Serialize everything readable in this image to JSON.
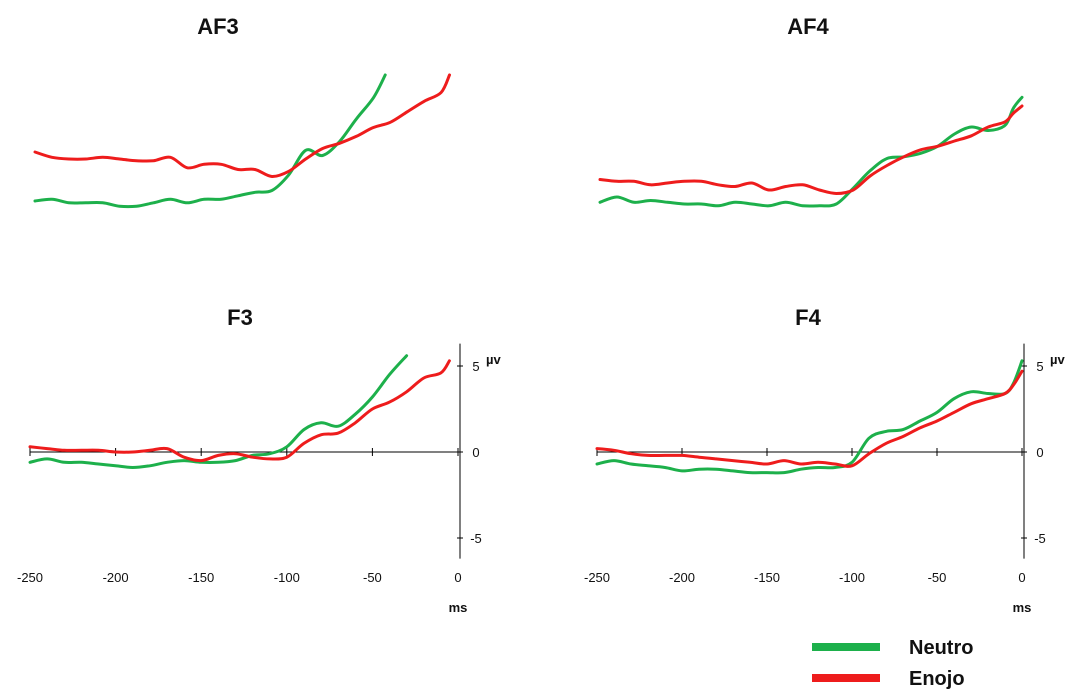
{
  "colors": {
    "neutro": "#1db04b",
    "enojo": "#ee1c1c",
    "axis": "#000000"
  },
  "legend": [
    {
      "name": "Neutro",
      "color": "#1db04b"
    },
    {
      "name": "Enojo",
      "color": "#ee1c1c"
    }
  ],
  "chart_data": [
    {
      "type": "line",
      "title": "AF3",
      "show_axes": false,
      "xlim": [
        -250,
        0
      ],
      "ylim": [
        -5,
        6
      ],
      "series": [
        {
          "name": "Neutro",
          "color": "#1db04b",
          "points": [
            [
              -250,
              0
            ],
            [
              -240,
              0.1
            ],
            [
              -230,
              -0.1
            ],
            [
              -220,
              -0.1
            ],
            [
              -210,
              -0.1
            ],
            [
              -200,
              -0.3
            ],
            [
              -190,
              -0.3
            ],
            [
              -180,
              -0.1
            ],
            [
              -170,
              0.1
            ],
            [
              -160,
              -0.1
            ],
            [
              -150,
              0.1
            ],
            [
              -140,
              0.1
            ],
            [
              -130,
              0.3
            ],
            [
              -120,
              0.5
            ],
            [
              -110,
              0.6
            ],
            [
              -100,
              1.5
            ],
            [
              -90,
              2.9
            ],
            [
              -80,
              2.6
            ],
            [
              -70,
              3.4
            ],
            [
              -60,
              4.7
            ],
            [
              -50,
              5.9
            ],
            [
              -43,
              7.2
            ]
          ]
        },
        {
          "name": "Enojo",
          "color": "#ee1c1c",
          "points": [
            [
              -250,
              2.8
            ],
            [
              -240,
              2.5
            ],
            [
              -230,
              2.4
            ],
            [
              -220,
              2.4
            ],
            [
              -210,
              2.5
            ],
            [
              -200,
              2.4
            ],
            [
              -190,
              2.3
            ],
            [
              -180,
              2.3
            ],
            [
              -170,
              2.5
            ],
            [
              -160,
              1.9
            ],
            [
              -150,
              2.1
            ],
            [
              -140,
              2.1
            ],
            [
              -130,
              1.8
            ],
            [
              -120,
              1.8
            ],
            [
              -110,
              1.4
            ],
            [
              -100,
              1.7
            ],
            [
              -90,
              2.4
            ],
            [
              -80,
              3.0
            ],
            [
              -70,
              3.3
            ],
            [
              -60,
              3.7
            ],
            [
              -50,
              4.2
            ],
            [
              -40,
              4.5
            ],
            [
              -30,
              5.1
            ],
            [
              -20,
              5.7
            ],
            [
              -10,
              6.2
            ],
            [
              -5,
              7.2
            ]
          ]
        }
      ]
    },
    {
      "type": "line",
      "title": "AF4",
      "show_axes": false,
      "xlim": [
        -250,
        0
      ],
      "ylim": [
        -5,
        6
      ],
      "series": [
        {
          "name": "Neutro",
          "color": "#1db04b",
          "points": [
            [
              -250,
              -0.3
            ],
            [
              -240,
              0
            ],
            [
              -230,
              -0.3
            ],
            [
              -220,
              -0.2
            ],
            [
              -210,
              -0.3
            ],
            [
              -200,
              -0.4
            ],
            [
              -190,
              -0.4
            ],
            [
              -180,
              -0.5
            ],
            [
              -170,
              -0.3
            ],
            [
              -160,
              -0.4
            ],
            [
              -150,
              -0.5
            ],
            [
              -140,
              -0.3
            ],
            [
              -130,
              -0.5
            ],
            [
              -120,
              -0.5
            ],
            [
              -110,
              -0.4
            ],
            [
              -100,
              0.5
            ],
            [
              -90,
              1.5
            ],
            [
              -80,
              2.2
            ],
            [
              -70,
              2.3
            ],
            [
              -60,
              2.5
            ],
            [
              -50,
              2.9
            ],
            [
              -40,
              3.6
            ],
            [
              -30,
              4.0
            ],
            [
              -20,
              3.8
            ],
            [
              -10,
              4.1
            ],
            [
              -5,
              5.1
            ],
            [
              0,
              5.7
            ]
          ]
        },
        {
          "name": "Enojo",
          "color": "#ee1c1c",
          "points": [
            [
              -250,
              1.0
            ],
            [
              -240,
              0.9
            ],
            [
              -230,
              0.9
            ],
            [
              -220,
              0.7
            ],
            [
              -210,
              0.8
            ],
            [
              -200,
              0.9
            ],
            [
              -190,
              0.9
            ],
            [
              -180,
              0.7
            ],
            [
              -170,
              0.6
            ],
            [
              -160,
              0.8
            ],
            [
              -150,
              0.4
            ],
            [
              -140,
              0.6
            ],
            [
              -130,
              0.7
            ],
            [
              -120,
              0.4
            ],
            [
              -110,
              0.2
            ],
            [
              -100,
              0.4
            ],
            [
              -90,
              1.2
            ],
            [
              -80,
              1.8
            ],
            [
              -70,
              2.3
            ],
            [
              -60,
              2.7
            ],
            [
              -50,
              2.9
            ],
            [
              -40,
              3.2
            ],
            [
              -30,
              3.5
            ],
            [
              -20,
              4.0
            ],
            [
              -10,
              4.3
            ],
            [
              -5,
              4.8
            ],
            [
              0,
              5.2
            ]
          ]
        }
      ]
    },
    {
      "type": "line",
      "title": "F3",
      "show_axes": true,
      "xlabel": "ms",
      "ylabel": "µv",
      "xlim": [
        -250,
        0
      ],
      "ylim": [
        -5,
        6
      ],
      "xticks": [
        -250,
        -200,
        -150,
        -100,
        -50,
        0
      ],
      "yticks": [
        5,
        0,
        -5
      ],
      "series": [
        {
          "name": "Neutro",
          "color": "#1db04b",
          "points": [
            [
              -250,
              -0.6
            ],
            [
              -240,
              -0.4
            ],
            [
              -230,
              -0.6
            ],
            [
              -220,
              -0.6
            ],
            [
              -210,
              -0.7
            ],
            [
              -200,
              -0.8
            ],
            [
              -190,
              -0.9
            ],
            [
              -180,
              -0.8
            ],
            [
              -170,
              -0.6
            ],
            [
              -160,
              -0.5
            ],
            [
              -150,
              -0.6
            ],
            [
              -140,
              -0.6
            ],
            [
              -130,
              -0.5
            ],
            [
              -120,
              -0.2
            ],
            [
              -110,
              -0.1
            ],
            [
              -100,
              0.3
            ],
            [
              -90,
              1.3
            ],
            [
              -80,
              1.7
            ],
            [
              -70,
              1.5
            ],
            [
              -60,
              2.2
            ],
            [
              -50,
              3.2
            ],
            [
              -40,
              4.5
            ],
            [
              -30,
              5.6
            ]
          ]
        },
        {
          "name": "Enojo",
          "color": "#ee1c1c",
          "points": [
            [
              -250,
              0.3
            ],
            [
              -240,
              0.2
            ],
            [
              -230,
              0.1
            ],
            [
              -220,
              0.1
            ],
            [
              -210,
              0.1
            ],
            [
              -200,
              0
            ],
            [
              -190,
              0
            ],
            [
              -180,
              0.1
            ],
            [
              -170,
              0.2
            ],
            [
              -160,
              -0.3
            ],
            [
              -150,
              -0.5
            ],
            [
              -140,
              -0.2
            ],
            [
              -130,
              -0.1
            ],
            [
              -120,
              -0.3
            ],
            [
              -110,
              -0.4
            ],
            [
              -100,
              -0.3
            ],
            [
              -90,
              0.5
            ],
            [
              -80,
              1.0
            ],
            [
              -70,
              1.1
            ],
            [
              -60,
              1.7
            ],
            [
              -50,
              2.5
            ],
            [
              -40,
              2.9
            ],
            [
              -30,
              3.5
            ],
            [
              -20,
              4.3
            ],
            [
              -10,
              4.6
            ],
            [
              -5,
              5.3
            ]
          ]
        }
      ]
    },
    {
      "type": "line",
      "title": "F4",
      "show_axes": true,
      "xlabel": "ms",
      "ylabel": "µv",
      "xlim": [
        -250,
        0
      ],
      "ylim": [
        -5,
        6
      ],
      "xticks": [
        -250,
        -200,
        -150,
        -100,
        -50,
        0
      ],
      "yticks": [
        5,
        0,
        -5
      ],
      "series": [
        {
          "name": "Neutro",
          "color": "#1db04b",
          "points": [
            [
              -250,
              -0.7
            ],
            [
              -240,
              -0.5
            ],
            [
              -230,
              -0.7
            ],
            [
              -220,
              -0.8
            ],
            [
              -210,
              -0.9
            ],
            [
              -200,
              -1.1
            ],
            [
              -190,
              -1.0
            ],
            [
              -180,
              -1.0
            ],
            [
              -170,
              -1.1
            ],
            [
              -160,
              -1.2
            ],
            [
              -150,
              -1.2
            ],
            [
              -140,
              -1.2
            ],
            [
              -130,
              -1.0
            ],
            [
              -120,
              -0.9
            ],
            [
              -110,
              -0.9
            ],
            [
              -100,
              -0.6
            ],
            [
              -90,
              0.8
            ],
            [
              -80,
              1.2
            ],
            [
              -70,
              1.3
            ],
            [
              -60,
              1.8
            ],
            [
              -50,
              2.3
            ],
            [
              -40,
              3.1
            ],
            [
              -30,
              3.5
            ],
            [
              -20,
              3.4
            ],
            [
              -10,
              3.4
            ],
            [
              -5,
              4.0
            ],
            [
              0,
              5.3
            ]
          ]
        },
        {
          "name": "Enojo",
          "color": "#ee1c1c",
          "points": [
            [
              -250,
              0.2
            ],
            [
              -240,
              0.1
            ],
            [
              -230,
              -0.1
            ],
            [
              -220,
              -0.2
            ],
            [
              -210,
              -0.2
            ],
            [
              -200,
              -0.2
            ],
            [
              -190,
              -0.3
            ],
            [
              -180,
              -0.4
            ],
            [
              -170,
              -0.5
            ],
            [
              -160,
              -0.6
            ],
            [
              -150,
              -0.7
            ],
            [
              -140,
              -0.5
            ],
            [
              -130,
              -0.7
            ],
            [
              -120,
              -0.6
            ],
            [
              -110,
              -0.7
            ],
            [
              -100,
              -0.8
            ],
            [
              -90,
              -0.1
            ],
            [
              -80,
              0.5
            ],
            [
              -70,
              0.9
            ],
            [
              -60,
              1.4
            ],
            [
              -50,
              1.8
            ],
            [
              -40,
              2.3
            ],
            [
              -30,
              2.8
            ],
            [
              -20,
              3.1
            ],
            [
              -10,
              3.4
            ],
            [
              -5,
              3.9
            ],
            [
              0,
              4.7
            ]
          ]
        }
      ]
    }
  ]
}
